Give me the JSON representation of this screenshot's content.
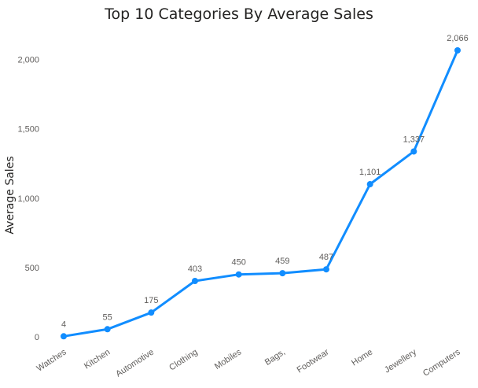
{
  "chart_data": {
    "type": "line",
    "title": "Top 10 Categories By Average Sales",
    "xlabel": "",
    "ylabel": "Average Sales",
    "categories": [
      "Watches",
      "Kitchen",
      "Automotive",
      "Clothing",
      "Mobiles",
      "Bags,",
      "Footwear",
      "Home",
      "Jewellery",
      "Computers"
    ],
    "values": [
      4,
      55,
      175,
      403,
      450,
      459,
      487,
      1101,
      1337,
      2066
    ],
    "data_labels": [
      "4",
      "55",
      "175",
      "403",
      "450",
      "459",
      "487",
      "1,101",
      "1,337",
      "2,066"
    ],
    "yticks": [
      0,
      500,
      1000,
      1500,
      2000
    ],
    "ytick_labels": [
      "0",
      "500",
      "1,000",
      "1,500",
      "2,000"
    ],
    "ylim": [
      0,
      2066
    ],
    "grid": false,
    "legend": "none",
    "line_color": "#118DFF"
  }
}
